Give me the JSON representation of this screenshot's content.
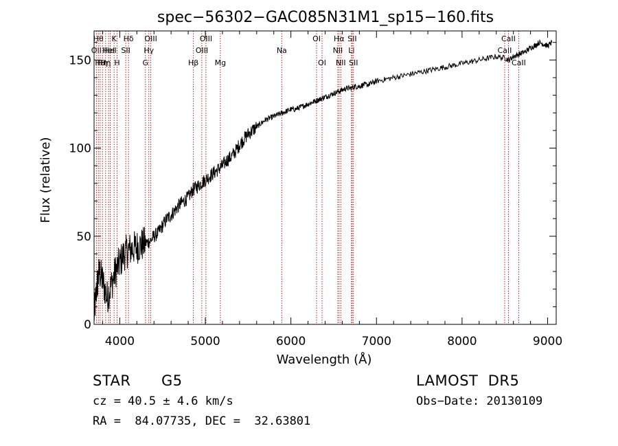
{
  "chart_data": {
    "type": "line",
    "title": "spec−56302−GAC085N31M1_sp15−160.fits",
    "xlabel": "Wavelength (Å)",
    "ylabel": "Flux (relative)",
    "xlim": [
      3700,
      9100
    ],
    "ylim": [
      0,
      1665
    ],
    "ylim_units_note": "",
    "x_ticks": [
      4000,
      5000,
      6000,
      7000,
      8000,
      9000
    ],
    "x_tick_labels": [
      "4000",
      "5000",
      "6000",
      "7000",
      "8000",
      "9000"
    ],
    "y_ticks": [
      0,
      50,
      100,
      150
    ],
    "y_tick_labels": [
      "0",
      "50",
      "100",
      "150"
    ],
    "grid": false,
    "series": [
      {
        "x": [
          3700,
          3730,
          3760,
          3800,
          3850,
          3900,
          3950,
          4000,
          4050,
          4100,
          4150,
          4200,
          4250,
          4300,
          4350,
          4400,
          4450,
          4500,
          4550,
          4600,
          4650,
          4700,
          4750,
          4800,
          4850,
          4900,
          4950,
          5000,
          5050,
          5100,
          5150,
          5200,
          5250,
          5300,
          5350,
          5400,
          5450,
          5500,
          5550,
          5600,
          5650,
          5700,
          5750,
          5800,
          5850,
          5900,
          5950,
          6000,
          6050,
          6100,
          6150,
          6200,
          6250,
          6300,
          6350,
          6400,
          6450,
          6500,
          6550,
          6600,
          6650,
          6700,
          6750,
          6800,
          6850,
          6900,
          6950,
          7000,
          7100,
          7200,
          7300,
          7400,
          7500,
          7600,
          7700,
          7800,
          7900,
          8000,
          8100,
          8200,
          8300,
          8400,
          8500,
          8550,
          8600,
          8650,
          8700,
          8750,
          8800,
          8850,
          8900,
          8950,
          9000,
          9050
        ],
        "y": [
          5,
          20,
          30,
          25,
          15,
          22,
          30,
          35,
          40,
          42,
          43,
          44,
          45,
          46,
          47,
          50,
          52,
          56,
          60,
          62,
          65,
          68,
          70,
          72,
          76,
          78,
          80,
          82,
          84,
          86,
          88,
          90,
          93,
          95,
          98,
          102,
          105,
          108,
          110,
          112,
          114,
          116,
          117,
          118,
          119,
          120,
          121,
          122,
          122,
          123,
          124,
          125,
          126,
          127,
          128,
          129,
          130,
          131,
          132,
          133,
          134,
          134,
          135,
          135,
          136,
          136,
          137,
          138,
          139,
          140,
          141,
          142,
          143,
          144,
          145,
          146,
          147,
          148,
          149,
          150,
          151,
          152,
          151,
          150,
          152,
          153,
          154,
          155,
          157,
          158,
          160,
          159,
          158,
          160
        ]
      }
    ],
    "lines": [
      {
        "x": 3727,
        "label": "OII",
        "row": 1
      },
      {
        "x": 3750,
        "label": "Hθ",
        "row": 0
      },
      {
        "x": 3771,
        "label": "Hθ",
        "row": 2
      },
      {
        "x": 3798,
        "label": "Hη",
        "row": 2
      },
      {
        "x": 3835,
        "label": "Hη",
        "row": 2
      },
      {
        "x": 3869,
        "label": "HeI",
        "row": 1
      },
      {
        "x": 3889,
        "label": "HeI",
        "row": 1
      },
      {
        "x": 3934,
        "label": "K",
        "row": 0
      },
      {
        "x": 3969,
        "label": "H",
        "row": 2
      },
      {
        "x": 4070,
        "label": "SII",
        "row": 1
      },
      {
        "x": 4102,
        "label": "Hδ",
        "row": 0
      },
      {
        "x": 4300,
        "label": "G",
        "row": 2
      },
      {
        "x": 4340,
        "label": "Hγ",
        "row": 1
      },
      {
        "x": 4363,
        "label": "OIII",
        "row": 0
      },
      {
        "x": 4861,
        "label": "Hβ",
        "row": 2
      },
      {
        "x": 4959,
        "label": "OIII",
        "row": 1
      },
      {
        "x": 5007,
        "label": "OIII",
        "row": 0
      },
      {
        "x": 5175,
        "label": "Mg",
        "row": 2
      },
      {
        "x": 5893,
        "label": "Na",
        "row": 1
      },
      {
        "x": 6300,
        "label": "OI",
        "row": 0
      },
      {
        "x": 6364,
        "label": "OI",
        "row": 2
      },
      {
        "x": 6548,
        "label": "NII",
        "row": 1
      },
      {
        "x": 6563,
        "label": "Hα",
        "row": 0
      },
      {
        "x": 6583,
        "label": "NII",
        "row": 2
      },
      {
        "x": 6708,
        "label": "Li",
        "row": 1
      },
      {
        "x": 6716,
        "label": "SII",
        "row": 0
      },
      {
        "x": 6731,
        "label": "SII",
        "row": 2
      },
      {
        "x": 8498,
        "label": "CaII",
        "row": 1
      },
      {
        "x": 8542,
        "label": "CaII",
        "row": 0
      },
      {
        "x": 8662,
        "label": "CaII",
        "row": 2
      }
    ]
  },
  "info": {
    "class_label": "STAR",
    "subclass_label": "G5",
    "survey": "LAMOST  DR5",
    "redshift": "cz = 40.5 ± 4.6 km/s",
    "obs_date": "Obs−Date: 20130109",
    "coords": "RA =  84.07735, DEC =  32.63801"
  }
}
